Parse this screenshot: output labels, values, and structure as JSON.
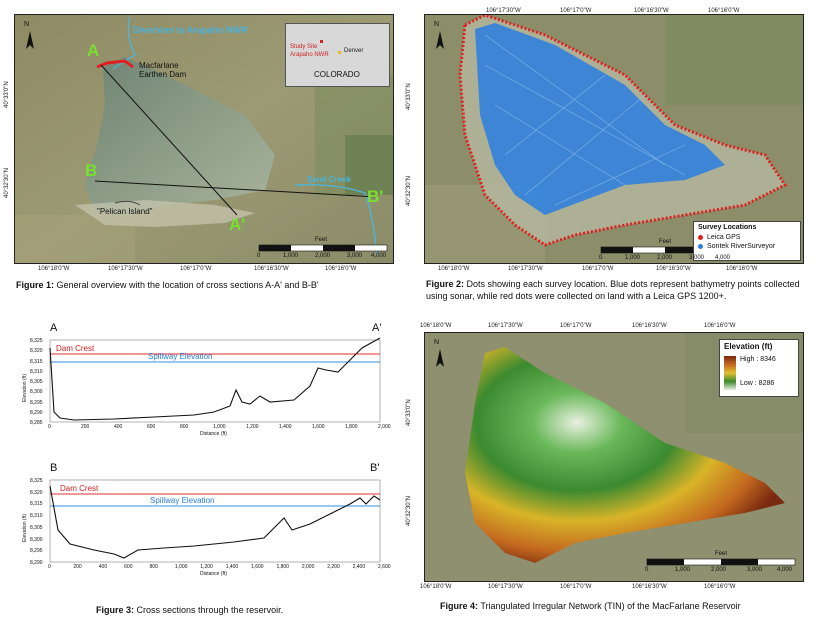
{
  "fig1": {
    "diversion_label": "Diversion to Arapaho NWR",
    "dam_label": "Macfarlane Earthen Dam",
    "creek_label": "Sand Creek",
    "island_label": "\"Pelican Island\"",
    "points": {
      "a": "A",
      "a_prime": "A'",
      "b": "B",
      "b_prime": "B'"
    },
    "inset": {
      "state": "COLORADO",
      "study_site": "Study Site",
      "arapaho": "Arapaho NWR",
      "denver": "Denver"
    },
    "north": "N",
    "scale_unit": "Feet",
    "scale_ticks": [
      "0",
      "1,000",
      "2,000",
      "3,000",
      "4,000"
    ],
    "lon_labels": [
      "106°18'0\"W",
      "106°17'30\"W",
      "106°17'0\"W",
      "106°16'30\"W",
      "106°16'0\"W"
    ],
    "lat_labels": [
      "40°33'0\"N",
      "40°32'30\"N"
    ],
    "caption_bold": "Figure 1:",
    "caption_text": " General overview with the location of cross sections A-A' and B-B'"
  },
  "fig2": {
    "north": "N",
    "legend_title": "Survey Locations",
    "legend_items": [
      {
        "label": "Leica GPS",
        "color": "#e02020"
      },
      {
        "label": "Sontek RiverSurveyor",
        "color": "#2a7fe0"
      }
    ],
    "scale_unit": "Feet",
    "scale_ticks": [
      "0",
      "1,000",
      "2,000",
      "3,000",
      "4,000"
    ],
    "top_lon_labels": [
      "106°17'30\"W",
      "106°17'0\"W",
      "106°16'30\"W",
      "106°16'0\"W"
    ],
    "lon_labels": [
      "106°18'0\"W",
      "106°17'30\"W",
      "106°17'0\"W",
      "106°16'30\"W",
      "106°16'0\"W"
    ],
    "lat_labels": [
      "40°33'0\"N",
      "40°32'30\"N"
    ],
    "caption_bold": "Figure 2:",
    "caption_text": " Dots showing each survey location. Blue dots represent bathymetry points collected using sonar, while red dots were collected on land with a Leica GPS 1200+."
  },
  "fig3": {
    "top": {
      "left_label": "A",
      "right_label": "A'",
      "dam_crest": "Dam Crest",
      "spillway": "Spillway Elevation",
      "ylabel": "Elevation (ft)",
      "xlabel": "Distance (ft)",
      "yticks": [
        "8,325",
        "8,320",
        "8,315",
        "8,310",
        "8,305",
        "8,300",
        "8,295",
        "8,290",
        "8,285"
      ],
      "xticks": [
        "0",
        "200",
        "400",
        "600",
        "800",
        "1,000",
        "1,200",
        "1,400",
        "1,600",
        "1,800",
        "2,000"
      ]
    },
    "bottom": {
      "left_label": "B",
      "right_label": "B'",
      "dam_crest": "Dam Crest",
      "spillway": "Spillway Elevation",
      "ylabel": "Elevation (ft)",
      "xlabel": "Distance (ft)",
      "yticks": [
        "8,325",
        "8,320",
        "8,315",
        "8,310",
        "8,305",
        "8,300",
        "8,295",
        "8,290"
      ],
      "xticks": [
        "0",
        "200",
        "400",
        "600",
        "800",
        "1,000",
        "1,200",
        "1,400",
        "1,600",
        "1,800",
        "2,000",
        "2,200",
        "2,400",
        "2,600"
      ]
    },
    "caption_bold": "Figure 3:",
    "caption_text": " Cross sections through the reservoir."
  },
  "fig4": {
    "north": "N",
    "legend_title": "Elevation (ft)",
    "legend_high": "High : 8346",
    "legend_low": "Low : 8286",
    "scale_unit": "Feet",
    "scale_ticks": [
      "0",
      "1,000",
      "2,000",
      "3,000",
      "4,000"
    ],
    "top_lon_labels": [
      "106°18'0\"W",
      "106°17'30\"W",
      "106°17'0\"W",
      "106°16'30\"W",
      "106°16'0\"W"
    ],
    "lon_labels": [
      "106°18'0\"W",
      "106°17'30\"W",
      "106°17'0\"W",
      "106°16'30\"W",
      "106°16'0\"W"
    ],
    "lat_labels": [
      "40°33'0\"N",
      "40°32'30\"N"
    ],
    "caption_bold": "Figure 4:",
    "caption_text": " Triangulated Irregular Network (TIN) of the MacFarlane Reservoir"
  }
}
